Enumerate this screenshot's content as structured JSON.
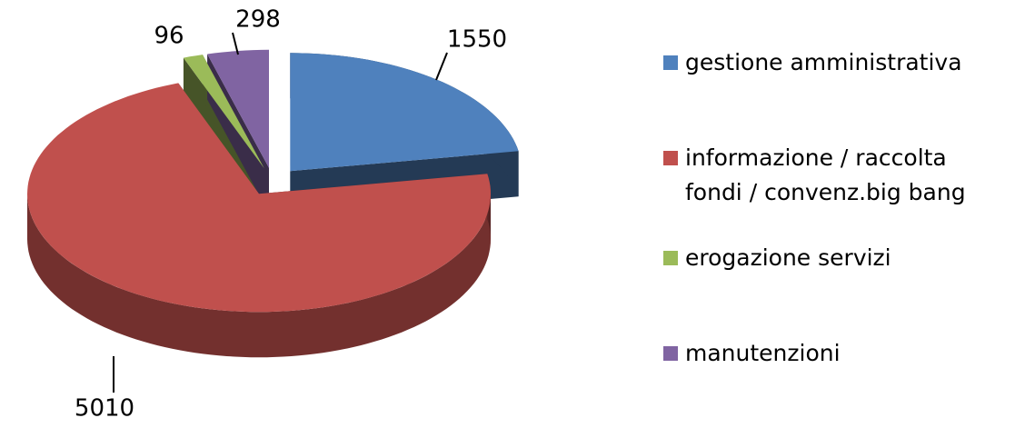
{
  "chart_data": {
    "type": "pie",
    "categories": [
      "gestione amministrativa",
      "informazione / raccolta fondi / convenz.big bang",
      "erogazione servizi",
      "manutenzioni"
    ],
    "values": [
      1550,
      5010,
      96,
      298
    ],
    "colors": [
      "#4f81bd",
      "#c0504d",
      "#9bbb59",
      "#8064a2"
    ],
    "legend": "right"
  }
}
